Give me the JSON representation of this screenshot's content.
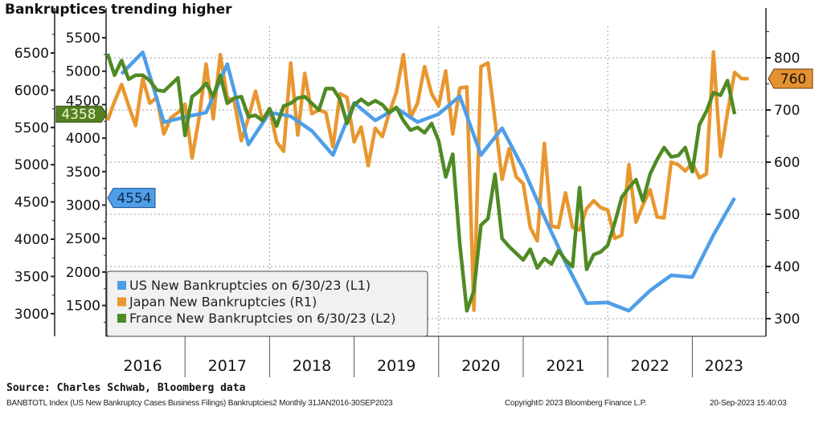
{
  "title": "Bankruptices trending higher",
  "source": "Source: Charles Schwab, Bloomberg data",
  "footer": {
    "left": "BANBTOTL Index (US New Bankruptcy Cases Business Filings) Bankruptcies2  Monthly 31JAN2016-30SEP2023",
    "center": "Copyright© 2023 Bloomberg Finance L.P.",
    "right": "20-Sep-2023 15:40:03"
  },
  "chart_data": {
    "type": "line",
    "title": "Bankruptices trending higher",
    "grid": true,
    "legend_position": "bottom-left",
    "x_tick_labels": [
      "2016",
      "2017",
      "2018",
      "2019",
      "2020",
      "2021",
      "2022",
      "2023"
    ],
    "axes": {
      "L1": {
        "ticks": [
          "3000",
          "3500",
          "4000",
          "4500",
          "5000",
          "5500",
          "6000",
          "6500"
        ],
        "range": [
          2850,
          6800
        ]
      },
      "L2": {
        "ticks": [
          "1500",
          "2000",
          "2500",
          "3000",
          "3500",
          "4000",
          "4500",
          "5000",
          "5500"
        ],
        "range": [
          1050,
          5700
        ]
      },
      "R1": {
        "ticks": [
          "300",
          "400",
          "500",
          "600",
          "700",
          "800"
        ],
        "range": [
          265,
          860
        ]
      }
    },
    "series": [
      {
        "name": "US New Bankruptcies on 6/30/23 (L1)",
        "axis": "L1",
        "color": "#4f9ee8",
        "last_value_label": "4554",
        "frequency": "quarterly",
        "start": "2016-03",
        "values": [
          6220,
          6510,
          5570,
          5640,
          5700,
          6350,
          5270,
          5700,
          5650,
          5455,
          5130,
          5830,
          5595,
          5760,
          5573,
          5680,
          5920,
          5130,
          5490,
          4950,
          4300,
          3690,
          3140,
          3150,
          3040,
          3310,
          3515,
          3490,
          4055,
          4554
        ]
      },
      {
        "name": "Japan New Bankruptcies (R1)",
        "axis": "R1",
        "color": "#e8972f",
        "last_value_label": "760",
        "frequency": "monthly",
        "start": "2016-01",
        "values": [
          680,
          716,
          749,
          708,
          670,
          760,
          713,
          724,
          654,
          685,
          695,
          711,
          608,
          685,
          788,
          683,
          806,
          724,
          716,
          641,
          685,
          736,
          680,
          703,
          639,
          621,
          790,
          652,
          770,
          693,
          700,
          695,
          629,
          731,
          724,
          639,
          667,
          593,
          665,
          649,
          695,
          734,
          806,
          685,
          713,
          783,
          731,
          708,
          775,
          654,
          742,
          744,
          316,
          783,
          790,
          680,
          567,
          626,
          572,
          559,
          475,
          449,
          636,
          477,
          475,
          541,
          475,
          470,
          511,
          526,
          513,
          508,
          454,
          460,
          595,
          485,
          518,
          547,
          495,
          493,
          600,
          595,
          583,
          598,
          570,
          577,
          811,
          611,
          695,
          772,
          760,
          760
        ]
      },
      {
        "name": "France New Bankruptcies on 6/30/23 (L2)",
        "axis": "L2",
        "color": "#4f8a23",
        "last_value_label": "4358",
        "frequency": "monthly",
        "start": "2016-01",
        "values": [
          5260,
          4940,
          5160,
          4880,
          4940,
          4940,
          4860,
          4720,
          4700,
          4800,
          4900,
          4040,
          4620,
          4700,
          4820,
          4620,
          4940,
          4520,
          4600,
          4620,
          4320,
          4340,
          4260,
          4440,
          4180,
          4480,
          4520,
          4600,
          4620,
          4520,
          4420,
          4740,
          4740,
          4580,
          4220,
          4500,
          4580,
          4500,
          4560,
          4500,
          4380,
          4460,
          4260,
          4120,
          4160,
          4080,
          4220,
          3960,
          3420,
          3760,
          2420,
          1420,
          1720,
          2700,
          2800,
          3460,
          2500,
          2380,
          2280,
          2180,
          2340,
          2060,
          2200,
          2120,
          2320,
          2180,
          2080,
          3260,
          2040,
          2260,
          2300,
          2400,
          2740,
          3120,
          3260,
          3380,
          3060,
          3460,
          3680,
          3860,
          3720,
          3740,
          3860,
          3500,
          4200,
          4400,
          4680,
          4640,
          4860,
          4358
        ]
      }
    ]
  }
}
